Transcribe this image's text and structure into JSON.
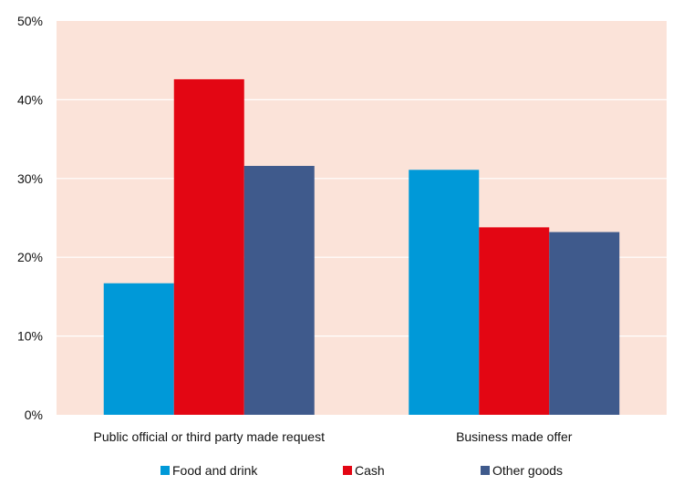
{
  "chart_data": {
    "type": "bar",
    "title": "",
    "xlabel": "",
    "ylabel": "",
    "ylim": [
      0,
      50
    ],
    "yticks": [
      0,
      10,
      20,
      30,
      40,
      50
    ],
    "ytick_labels": [
      "0%",
      "10%",
      "20%",
      "30%",
      "40%",
      "50%"
    ],
    "categories": [
      "Public official or third party made request",
      "Business made offer"
    ],
    "series": [
      {
        "name": "Food and drink",
        "color": "#0099d8",
        "values": [
          16.7,
          31.1
        ]
      },
      {
        "name": "Cash",
        "color": "#e30613",
        "values": [
          42.6,
          23.8
        ]
      },
      {
        "name": "Other goods",
        "color": "#3f5a8c",
        "values": [
          31.6,
          23.2
        ]
      }
    ],
    "grid": true,
    "legend_position": "bottom",
    "plot_background": "#fbe3d9"
  }
}
